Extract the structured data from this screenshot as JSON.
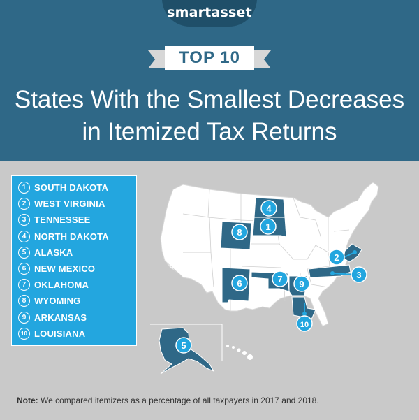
{
  "header": {
    "logo": "smartasset",
    "badge": "TOP 10",
    "title_line1": "States With the Smallest Decreases",
    "title_line2": "in Itemized Tax Returns"
  },
  "legend": {
    "items": [
      {
        "rank": "1",
        "state": "SOUTH DAKOTA"
      },
      {
        "rank": "2",
        "state": "WEST VIRGINIA"
      },
      {
        "rank": "3",
        "state": "TENNESSEE"
      },
      {
        "rank": "4",
        "state": "NORTH DAKOTA"
      },
      {
        "rank": "5",
        "state": "ALASKA"
      },
      {
        "rank": "6",
        "state": "NEW MEXICO"
      },
      {
        "rank": "7",
        "state": "OKLAHOMA"
      },
      {
        "rank": "8",
        "state": "WYOMING"
      },
      {
        "rank": "9",
        "state": "ARKANSAS"
      },
      {
        "rank": "10",
        "state": "LOUISIANA"
      }
    ]
  },
  "map": {
    "markers": [
      "1",
      "2",
      "3",
      "4",
      "5",
      "6",
      "7",
      "8",
      "9",
      "10"
    ]
  },
  "note": {
    "label": "Note:",
    "text": " We compared itemizers as a percentage of all taxpayers in 2017 and 2018."
  },
  "colors": {
    "header_bg": "#2f6887",
    "highlight_state": "#2f6887",
    "marker": "#23a6df",
    "background": "#c9c9c9",
    "state_fill": "#ffffff"
  }
}
